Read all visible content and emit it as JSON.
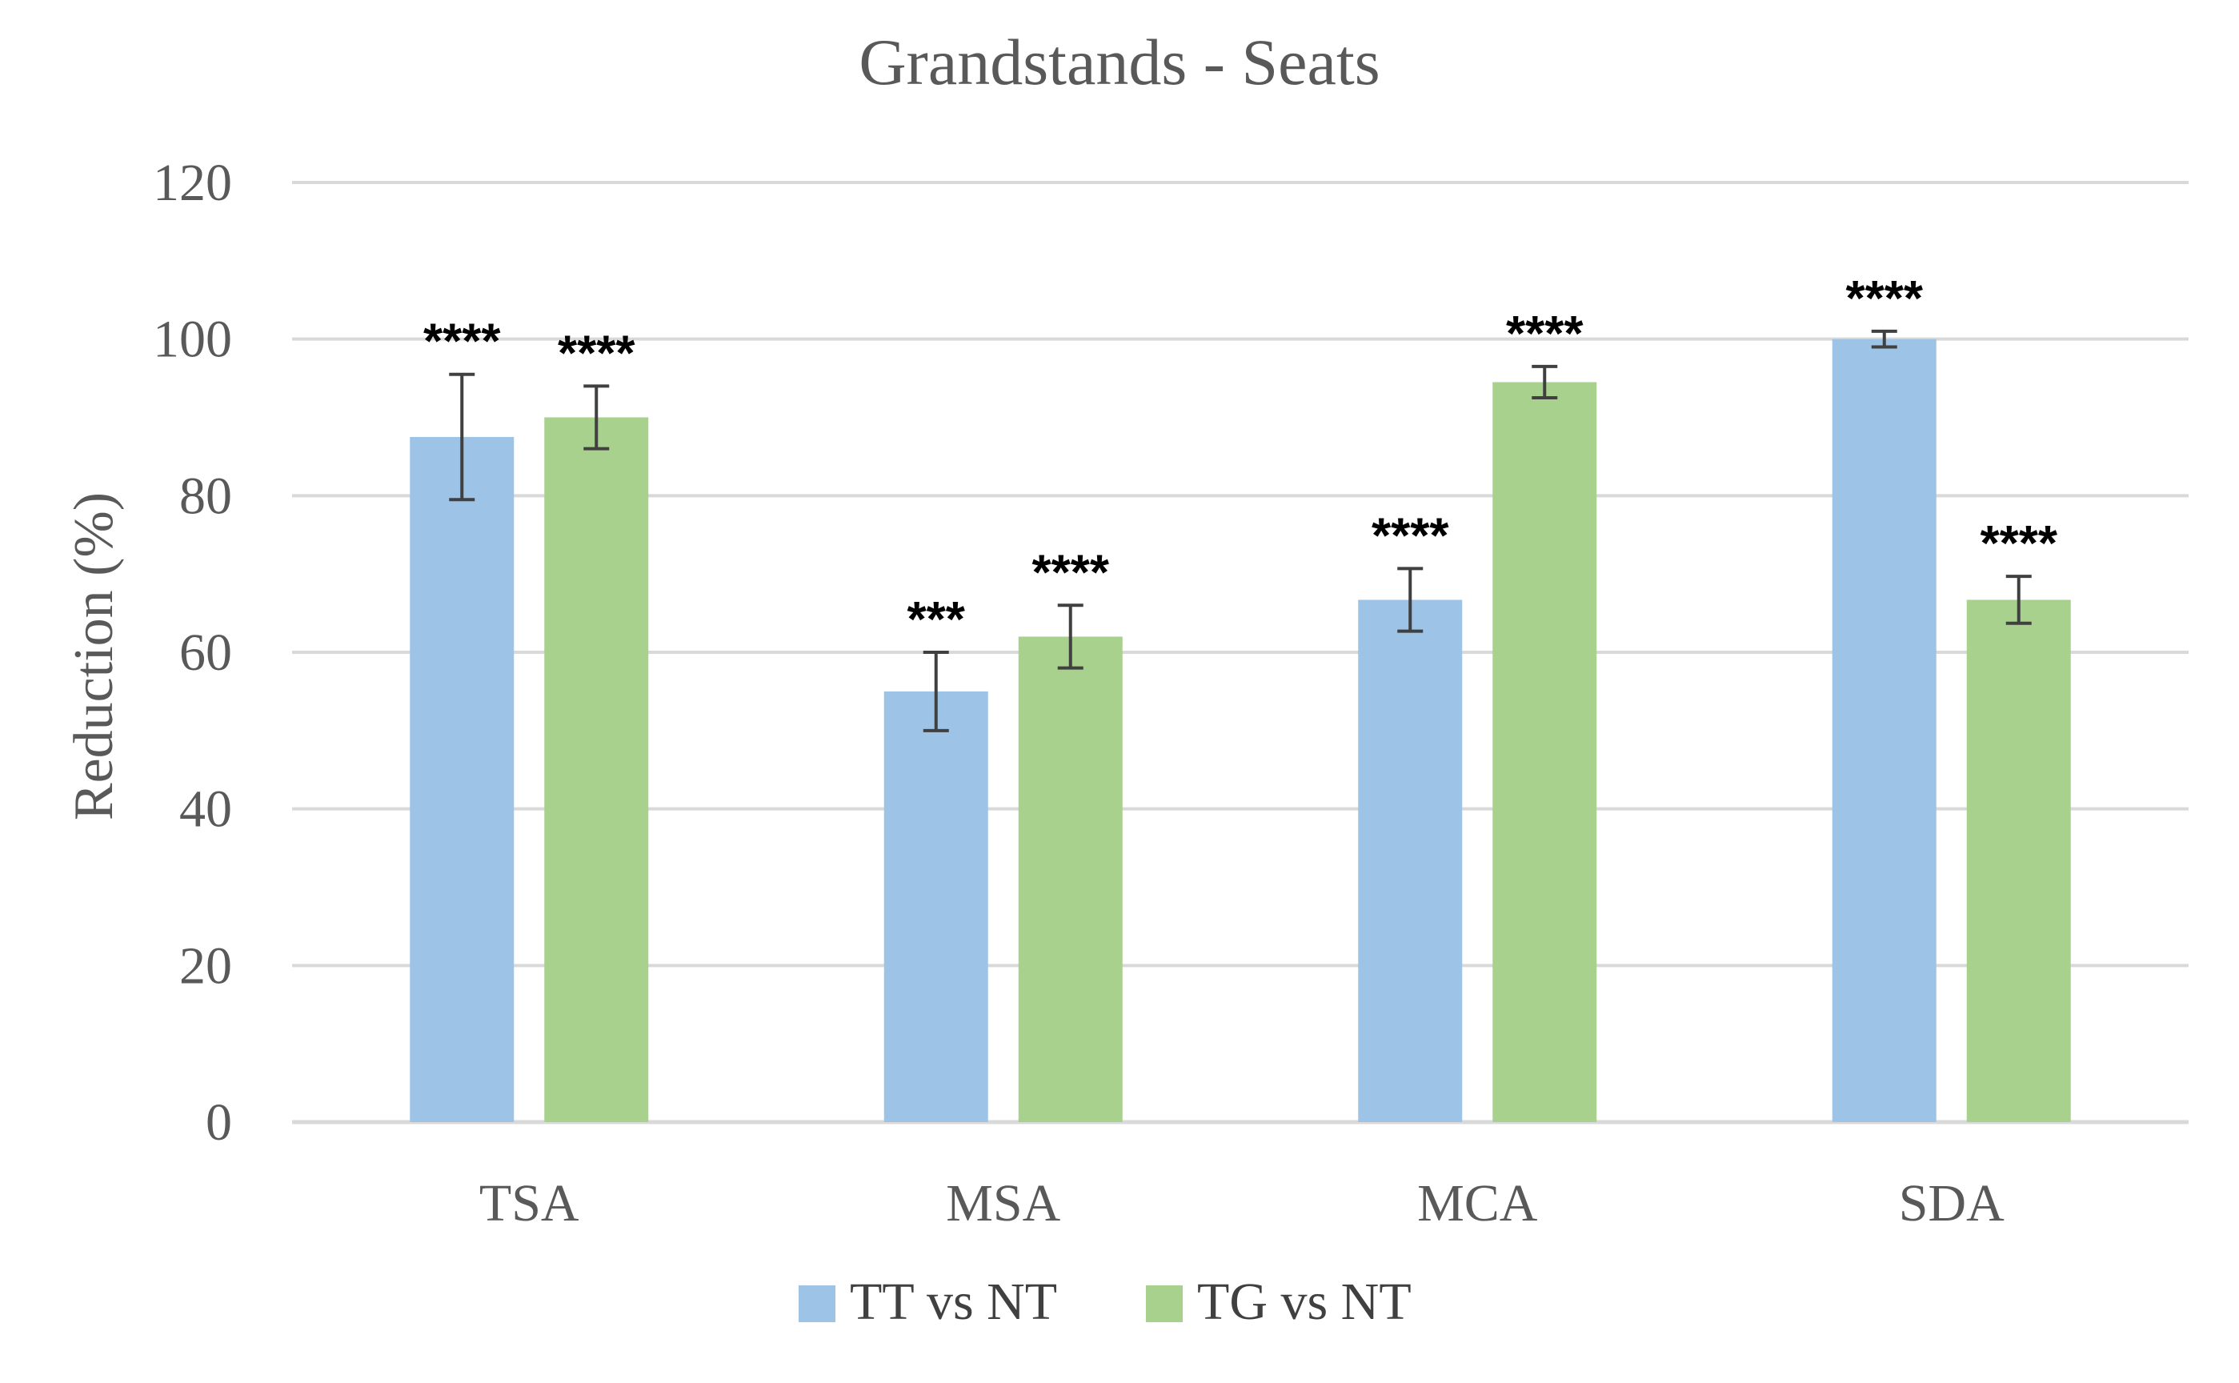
{
  "chart_data": {
    "type": "bar",
    "title": "Grandstands - Seats",
    "xlabel": "",
    "ylabel": "Reduction (%)",
    "ylim": [
      0,
      120
    ],
    "yticks": [
      0,
      20,
      40,
      60,
      80,
      100,
      120
    ],
    "grid": true,
    "legend_position": "bottom",
    "categories": [
      "TSA",
      "MSA",
      "MCA",
      "SDA"
    ],
    "series": [
      {
        "name": "TT vs NT",
        "color": "#9dc3e6",
        "values": [
          87.5,
          55,
          66.7,
          100
        ],
        "errors": [
          8,
          5,
          4,
          1
        ],
        "significance": [
          "****",
          "***",
          "****",
          "****"
        ]
      },
      {
        "name": "TG vs NT",
        "color": "#a9d18e",
        "values": [
          90,
          62,
          94.5,
          66.7
        ],
        "errors": [
          4,
          4,
          2,
          3
        ],
        "significance": [
          "****",
          "****",
          "****",
          "****"
        ]
      }
    ]
  }
}
